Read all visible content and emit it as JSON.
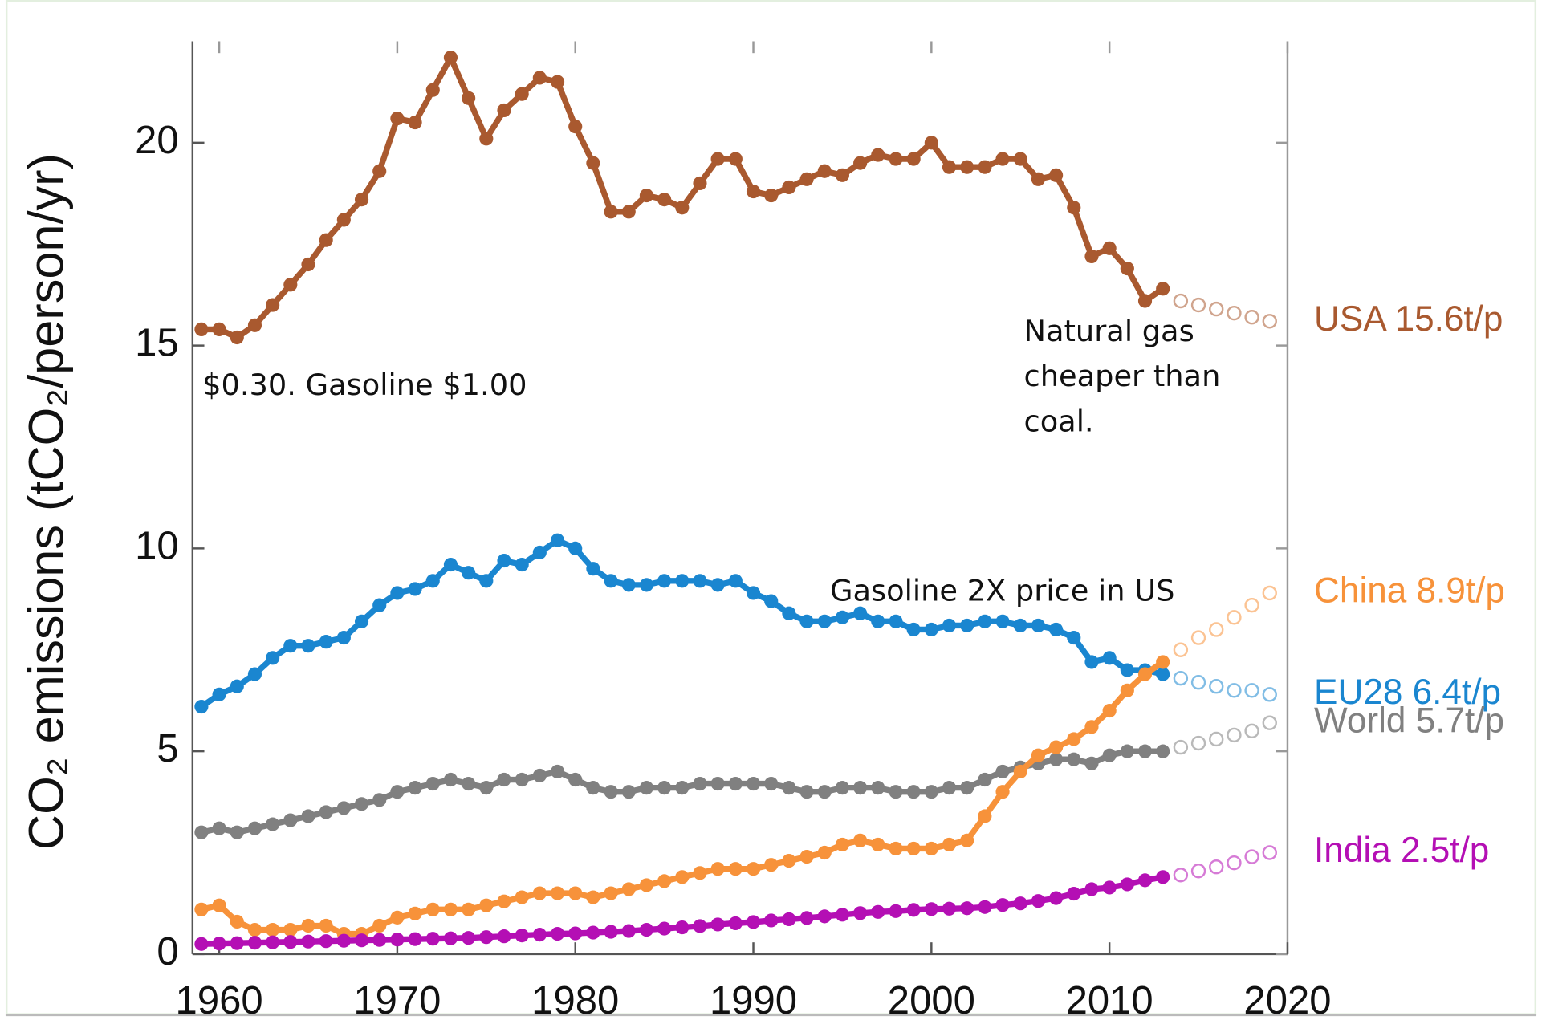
{
  "chart_data": {
    "type": "line",
    "y_label": "CO₂ emissions (tCO₂/person/yr)",
    "x": [
      1959,
      1960,
      1961,
      1962,
      1963,
      1964,
      1965,
      1966,
      1967,
      1968,
      1969,
      1970,
      1971,
      1972,
      1973,
      1974,
      1975,
      1976,
      1977,
      1978,
      1979,
      1980,
      1981,
      1982,
      1983,
      1984,
      1985,
      1986,
      1987,
      1988,
      1989,
      1990,
      1991,
      1992,
      1993,
      1994,
      1995,
      1996,
      1997,
      1998,
      1999,
      2000,
      2001,
      2002,
      2003,
      2004,
      2005,
      2006,
      2007,
      2008,
      2009,
      2010,
      2011,
      2012,
      2013
    ],
    "projection_x": [
      2014,
      2015,
      2016,
      2017,
      2018,
      2019
    ],
    "series": [
      {
        "name": "USA 15.6t/p",
        "color": "#a9592f",
        "values": [
          15.4,
          15.4,
          15.2,
          15.5,
          16.0,
          16.5,
          17.0,
          17.6,
          18.1,
          18.6,
          19.3,
          20.6,
          20.5,
          21.3,
          22.1,
          21.1,
          20.1,
          20.8,
          21.2,
          21.6,
          21.5,
          20.4,
          19.5,
          18.3,
          18.3,
          18.7,
          18.6,
          18.4,
          19.0,
          19.6,
          19.6,
          18.8,
          18.7,
          18.9,
          19.1,
          19.3,
          19.2,
          19.5,
          19.7,
          19.6,
          19.6,
          20.0,
          19.4,
          19.4,
          19.4,
          19.6,
          19.6,
          19.1,
          19.2,
          18.4,
          17.2,
          17.4,
          16.9,
          16.1,
          16.4
        ],
        "projection": [
          16.1,
          16.0,
          15.9,
          15.8,
          15.7,
          15.6
        ]
      },
      {
        "name": "EU28 6.4t/p",
        "color": "#1a86d0",
        "values": [
          6.1,
          6.4,
          6.6,
          6.9,
          7.3,
          7.6,
          7.6,
          7.7,
          7.8,
          8.2,
          8.6,
          8.9,
          9.0,
          9.2,
          9.6,
          9.4,
          9.2,
          9.7,
          9.6,
          9.9,
          10.2,
          10.0,
          9.5,
          9.2,
          9.1,
          9.1,
          9.2,
          9.2,
          9.2,
          9.1,
          9.2,
          8.9,
          8.7,
          8.4,
          8.2,
          8.2,
          8.3,
          8.4,
          8.2,
          8.2,
          8.0,
          8.0,
          8.1,
          8.1,
          8.2,
          8.2,
          8.1,
          8.1,
          8.0,
          7.8,
          7.2,
          7.3,
          7.0,
          7.0,
          6.9
        ],
        "projection": [
          6.8,
          6.7,
          6.6,
          6.5,
          6.5,
          6.4
        ]
      },
      {
        "name": "World 5.7t/p",
        "color": "#808080",
        "values": [
          3.0,
          3.1,
          3.0,
          3.1,
          3.2,
          3.3,
          3.4,
          3.5,
          3.6,
          3.7,
          3.8,
          4.0,
          4.1,
          4.2,
          4.3,
          4.2,
          4.1,
          4.3,
          4.3,
          4.4,
          4.5,
          4.3,
          4.1,
          4.0,
          4.0,
          4.1,
          4.1,
          4.1,
          4.2,
          4.2,
          4.2,
          4.2,
          4.2,
          4.1,
          4.0,
          4.0,
          4.1,
          4.1,
          4.1,
          4.0,
          4.0,
          4.0,
          4.1,
          4.1,
          4.3,
          4.5,
          4.6,
          4.7,
          4.8,
          4.8,
          4.7,
          4.9,
          5.0,
          5.0,
          5.0
        ],
        "projection": [
          5.1,
          5.2,
          5.3,
          5.4,
          5.5,
          5.7
        ]
      },
      {
        "name": "China 8.9t/p",
        "color": "#f7923a",
        "values": [
          1.1,
          1.2,
          0.8,
          0.6,
          0.6,
          0.6,
          0.7,
          0.7,
          0.5,
          0.5,
          0.7,
          0.9,
          1.0,
          1.1,
          1.1,
          1.1,
          1.2,
          1.3,
          1.4,
          1.5,
          1.5,
          1.5,
          1.4,
          1.5,
          1.6,
          1.7,
          1.8,
          1.9,
          2.0,
          2.1,
          2.1,
          2.1,
          2.2,
          2.3,
          2.4,
          2.5,
          2.7,
          2.8,
          2.7,
          2.6,
          2.6,
          2.6,
          2.7,
          2.8,
          3.4,
          4.0,
          4.5,
          4.9,
          5.1,
          5.3,
          5.6,
          6.0,
          6.5,
          6.9,
          7.2
        ],
        "projection": [
          7.5,
          7.8,
          8.0,
          8.3,
          8.6,
          8.9
        ]
      },
      {
        "name": "India 2.5t/p",
        "color": "#b40fb4",
        "values": [
          0.25,
          0.26,
          0.27,
          0.28,
          0.29,
          0.3,
          0.31,
          0.32,
          0.33,
          0.34,
          0.35,
          0.36,
          0.37,
          0.38,
          0.39,
          0.4,
          0.42,
          0.44,
          0.46,
          0.48,
          0.5,
          0.51,
          0.53,
          0.55,
          0.57,
          0.6,
          0.63,
          0.66,
          0.69,
          0.73,
          0.76,
          0.79,
          0.83,
          0.86,
          0.89,
          0.93,
          0.97,
          1.01,
          1.04,
          1.06,
          1.09,
          1.11,
          1.12,
          1.13,
          1.16,
          1.21,
          1.25,
          1.31,
          1.38,
          1.49,
          1.6,
          1.64,
          1.72,
          1.82,
          1.9
        ],
        "projection": [
          1.95,
          2.05,
          2.15,
          2.25,
          2.4,
          2.5
        ]
      }
    ],
    "annotations": [
      [
        "$0.30. Gasoline $1.00"
      ],
      [
        "Natural gas",
        "cheaper than",
        "coal."
      ],
      [
        "Gasoline 2X price in US"
      ]
    ],
    "xlim": [
      1958.5,
      2020
    ],
    "xticks": [
      1960,
      1970,
      1980,
      1990,
      2000,
      2010,
      2020
    ],
    "ylim": [
      0,
      22.5
    ],
    "yticks": [
      0,
      5,
      10,
      15,
      20
    ]
  }
}
